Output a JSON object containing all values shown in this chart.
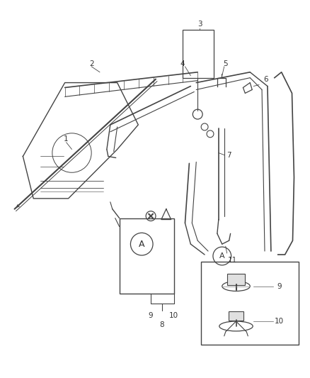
{
  "bg_color": "#ffffff",
  "line_color": "#444444",
  "label_color": "#333333",
  "fig_width": 4.38,
  "fig_height": 5.33,
  "dpi": 100,
  "label_fontsize": 7.5
}
